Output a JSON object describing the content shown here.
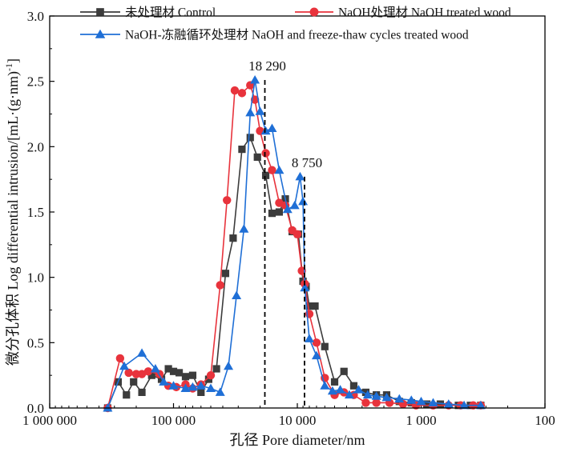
{
  "chart_data": {
    "type": "line",
    "title": "",
    "xlabel": "孔径 Pore diameter/nm",
    "ylabel": "微分孔体积 Log differential intrusion/[mL·(g·nm)-1]",
    "ylabel_parts": {
      "main": "微分孔体积 Log differential intrusion/[mL·(g·nm)",
      "sup": "-1",
      "tail": "]"
    },
    "x_scale": "log-reversed",
    "xlim": [
      1000000,
      100
    ],
    "ylim": [
      0,
      3.0
    ],
    "x_ticks": [
      {
        "value": 1000000,
        "label": "1 000 000"
      },
      {
        "value": 100000,
        "label": "100 000"
      },
      {
        "value": 10000,
        "label": "10 000"
      },
      {
        "value": 1000,
        "label": "1 000"
      },
      {
        "value": 100,
        "label": "100"
      }
    ],
    "y_ticks": [
      {
        "value": 0,
        "label": "0.0"
      },
      {
        "value": 0.5,
        "label": "0.5"
      },
      {
        "value": 1.0,
        "label": "1.0"
      },
      {
        "value": 1.5,
        "label": "1.5"
      },
      {
        "value": 2.0,
        "label": "2.0"
      },
      {
        "value": 2.5,
        "label": "2.5"
      },
      {
        "value": 3.0,
        "label": "3.0"
      }
    ],
    "series": [
      {
        "name": "未处理材 Control",
        "color": "#3c3c3c",
        "marker": "square",
        "x": [
          340000,
          280000,
          240000,
          210000,
          180000,
          150000,
          125000,
          110000,
          100000,
          90000,
          80000,
          70000,
          60000,
          52000,
          45000,
          38000,
          33000,
          28000,
          24000,
          21000,
          18000,
          16000,
          14000,
          12500,
          11000,
          9800,
          9000,
          8500,
          8000,
          7200,
          6000,
          5000,
          4200,
          3500,
          2800,
          2300,
          1900,
          1500,
          1200,
          900,
          700,
          500,
          400,
          330
        ],
        "y": [
          0.0,
          0.2,
          0.1,
          0.2,
          0.12,
          0.25,
          0.22,
          0.3,
          0.28,
          0.27,
          0.24,
          0.25,
          0.12,
          0.22,
          0.3,
          1.03,
          1.3,
          1.98,
          2.07,
          1.92,
          1.78,
          1.49,
          1.5,
          1.6,
          1.35,
          1.33,
          0.97,
          0.93,
          0.78,
          0.78,
          0.47,
          0.2,
          0.28,
          0.17,
          0.12,
          0.1,
          0.1,
          0.05,
          0.04,
          0.03,
          0.03,
          0.02,
          0.02,
          0.02
        ]
      },
      {
        "name": "NaOH处理材 NaOH treated wood",
        "color": "#e8333c",
        "marker": "circle",
        "x": [
          340000,
          270000,
          230000,
          200000,
          180000,
          160000,
          130000,
          110000,
          95000,
          80000,
          70000,
          60000,
          50000,
          42000,
          37000,
          32000,
          28000,
          24000,
          22000,
          20000,
          18000,
          16000,
          14000,
          12500,
          11000,
          10000,
          9200,
          8700,
          8000,
          7000,
          6000,
          5000,
          4200,
          3500,
          2800,
          2300,
          1800,
          1400,
          1100,
          800,
          600,
          480,
          380,
          330
        ],
        "y": [
          0.0,
          0.38,
          0.27,
          0.26,
          0.26,
          0.28,
          0.26,
          0.17,
          0.16,
          0.18,
          0.15,
          0.18,
          0.25,
          0.94,
          1.59,
          2.43,
          2.41,
          2.47,
          2.36,
          2.12,
          1.95,
          1.82,
          1.57,
          1.55,
          1.36,
          1.33,
          1.05,
          0.95,
          0.72,
          0.5,
          0.23,
          0.1,
          0.12,
          0.1,
          0.04,
          0.04,
          0.04,
          0.03,
          0.02,
          0.02,
          0.02,
          0.02,
          0.02,
          0.02
        ]
      },
      {
        "name": "NaOH-冻融循环处理材 NaOH and freeze-thaw cycles treated wood",
        "color": "#1f6fd6",
        "marker": "triangle",
        "x": [
          340000,
          250000,
          180000,
          140000,
          120000,
          100000,
          80000,
          70000,
          60000,
          50000,
          42000,
          36000,
          31000,
          27000,
          24000,
          22000,
          20000,
          18000,
          16000,
          14000,
          12000,
          10500,
          9500,
          9000,
          8700,
          8000,
          7000,
          6000,
          5200,
          4500,
          3800,
          3200,
          2700,
          2300,
          1900,
          1500,
          1200,
          1000,
          800,
          600,
          450,
          330
        ],
        "y": [
          0.0,
          0.32,
          0.42,
          0.3,
          0.2,
          0.17,
          0.15,
          0.16,
          0.17,
          0.15,
          0.12,
          0.32,
          0.86,
          1.37,
          2.26,
          2.51,
          2.27,
          2.12,
          2.14,
          1.82,
          1.52,
          1.55,
          1.77,
          1.58,
          0.92,
          0.53,
          0.4,
          0.17,
          0.13,
          0.14,
          0.1,
          0.14,
          0.1,
          0.09,
          0.08,
          0.07,
          0.06,
          0.05,
          0.04,
          0.03,
          0.02,
          0.02
        ]
      }
    ],
    "annotations": [
      {
        "label": "18 290",
        "x": 18290,
        "y": 2.51
      },
      {
        "label": "8 750",
        "x": 8750,
        "y": 1.77
      }
    ],
    "legend_position": "top-left"
  }
}
